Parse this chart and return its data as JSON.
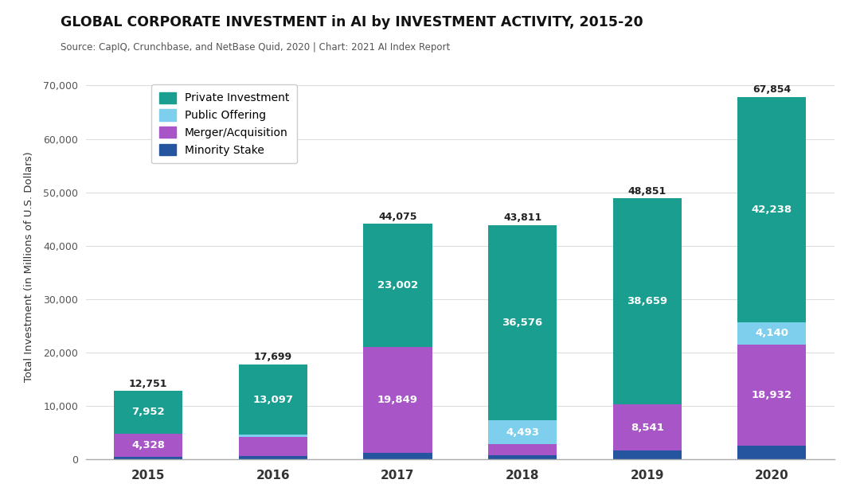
{
  "title": "GLOBAL CORPORATE INVESTMENT in AI by INVESTMENT ACTIVITY, 2015-20",
  "subtitle": "Source: CapIQ, Crunchbase, and NetBase Quid, 2020 | Chart: 2021 AI Index Report",
  "ylabel": "Total Investment (in Millions of U.S. Dollars)",
  "years": [
    "2015",
    "2016",
    "2017",
    "2018",
    "2019",
    "2020"
  ],
  "categories": [
    "Minority Stake",
    "Merger/Acquisition",
    "Public Offering",
    "Private Investment"
  ],
  "colors": [
    "#2655a0",
    "#a855c8",
    "#7ecfee",
    "#1a9e8f"
  ],
  "data": {
    "Minority Stake": [
      471,
      505,
      1224,
      742,
      1651,
      2544
    ],
    "Merger/Acquisition": [
      4328,
      3601,
      19849,
      2000,
      8541,
      18932
    ],
    "Public Offering": [
      0,
      496,
      0,
      4493,
      0,
      4140
    ],
    "Private Investment": [
      7952,
      13097,
      23002,
      36576,
      38659,
      42238
    ]
  },
  "totals": [
    12751,
    17699,
    44075,
    43811,
    48851,
    67854
  ],
  "bar_labels": {
    "Minority Stake": [
      null,
      null,
      null,
      null,
      null,
      null
    ],
    "Merger/Acquisition": [
      "4,328",
      null,
      "19,849",
      null,
      "8,541",
      "18,932"
    ],
    "Public Offering": [
      null,
      null,
      null,
      "4,493",
      null,
      "4,140"
    ],
    "Private Investment": [
      "7,952",
      "13,097",
      "23,002",
      "36,576",
      "38,659",
      "42,238"
    ]
  },
  "ylim": [
    0,
    72000
  ],
  "yticks": [
    0,
    10000,
    20000,
    30000,
    40000,
    50000,
    60000,
    70000
  ],
  "ytick_labels": [
    "0",
    "10,000",
    "20,000",
    "30,000",
    "40,000",
    "50,000",
    "60,000",
    "70,000"
  ],
  "background_color": "#ffffff",
  "bar_width": 0.55,
  "figsize": [
    10.8,
    6.27
  ]
}
